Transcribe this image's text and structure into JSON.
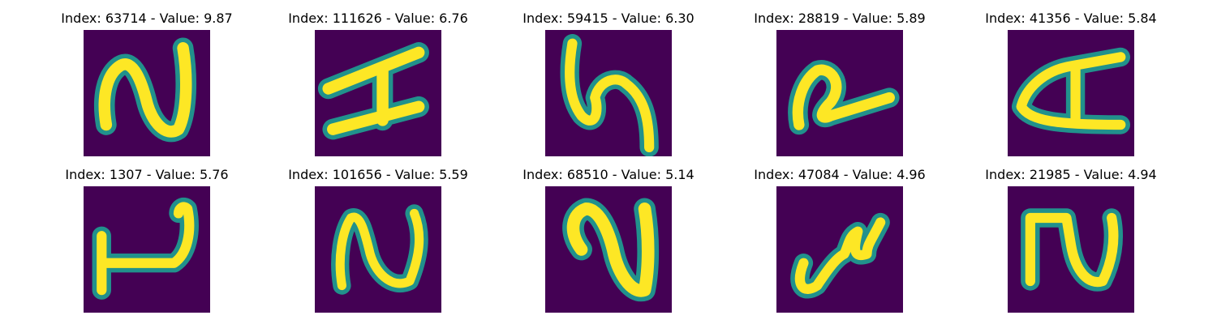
{
  "colors": {
    "background": "#440154",
    "stroke_core": "#fde725",
    "stroke_edge": "#21918c"
  },
  "panels": [
    {
      "title": "Index: 63714 - Value: 9.87",
      "glyph": "N"
    },
    {
      "title": "Index: 111626 - Value: 6.76",
      "glyph": "H"
    },
    {
      "title": "Index: 59415 - Value: 6.30",
      "glyph": "S"
    },
    {
      "title": "Index: 28819 - Value: 5.89",
      "glyph": "Q"
    },
    {
      "title": "Index: 41356 - Value: 5.84",
      "glyph": "A"
    },
    {
      "title": "Index: 1307 - Value: 5.76",
      "glyph": "L"
    },
    {
      "title": "Index: 101656 - Value: 5.59",
      "glyph": "N"
    },
    {
      "title": "Index: 68510 - Value: 5.14",
      "glyph": "N"
    },
    {
      "title": "Index: 47084 - Value: 4.96",
      "glyph": "S"
    },
    {
      "title": "Index: 21985 - Value: 4.94",
      "glyph": "N"
    }
  ]
}
